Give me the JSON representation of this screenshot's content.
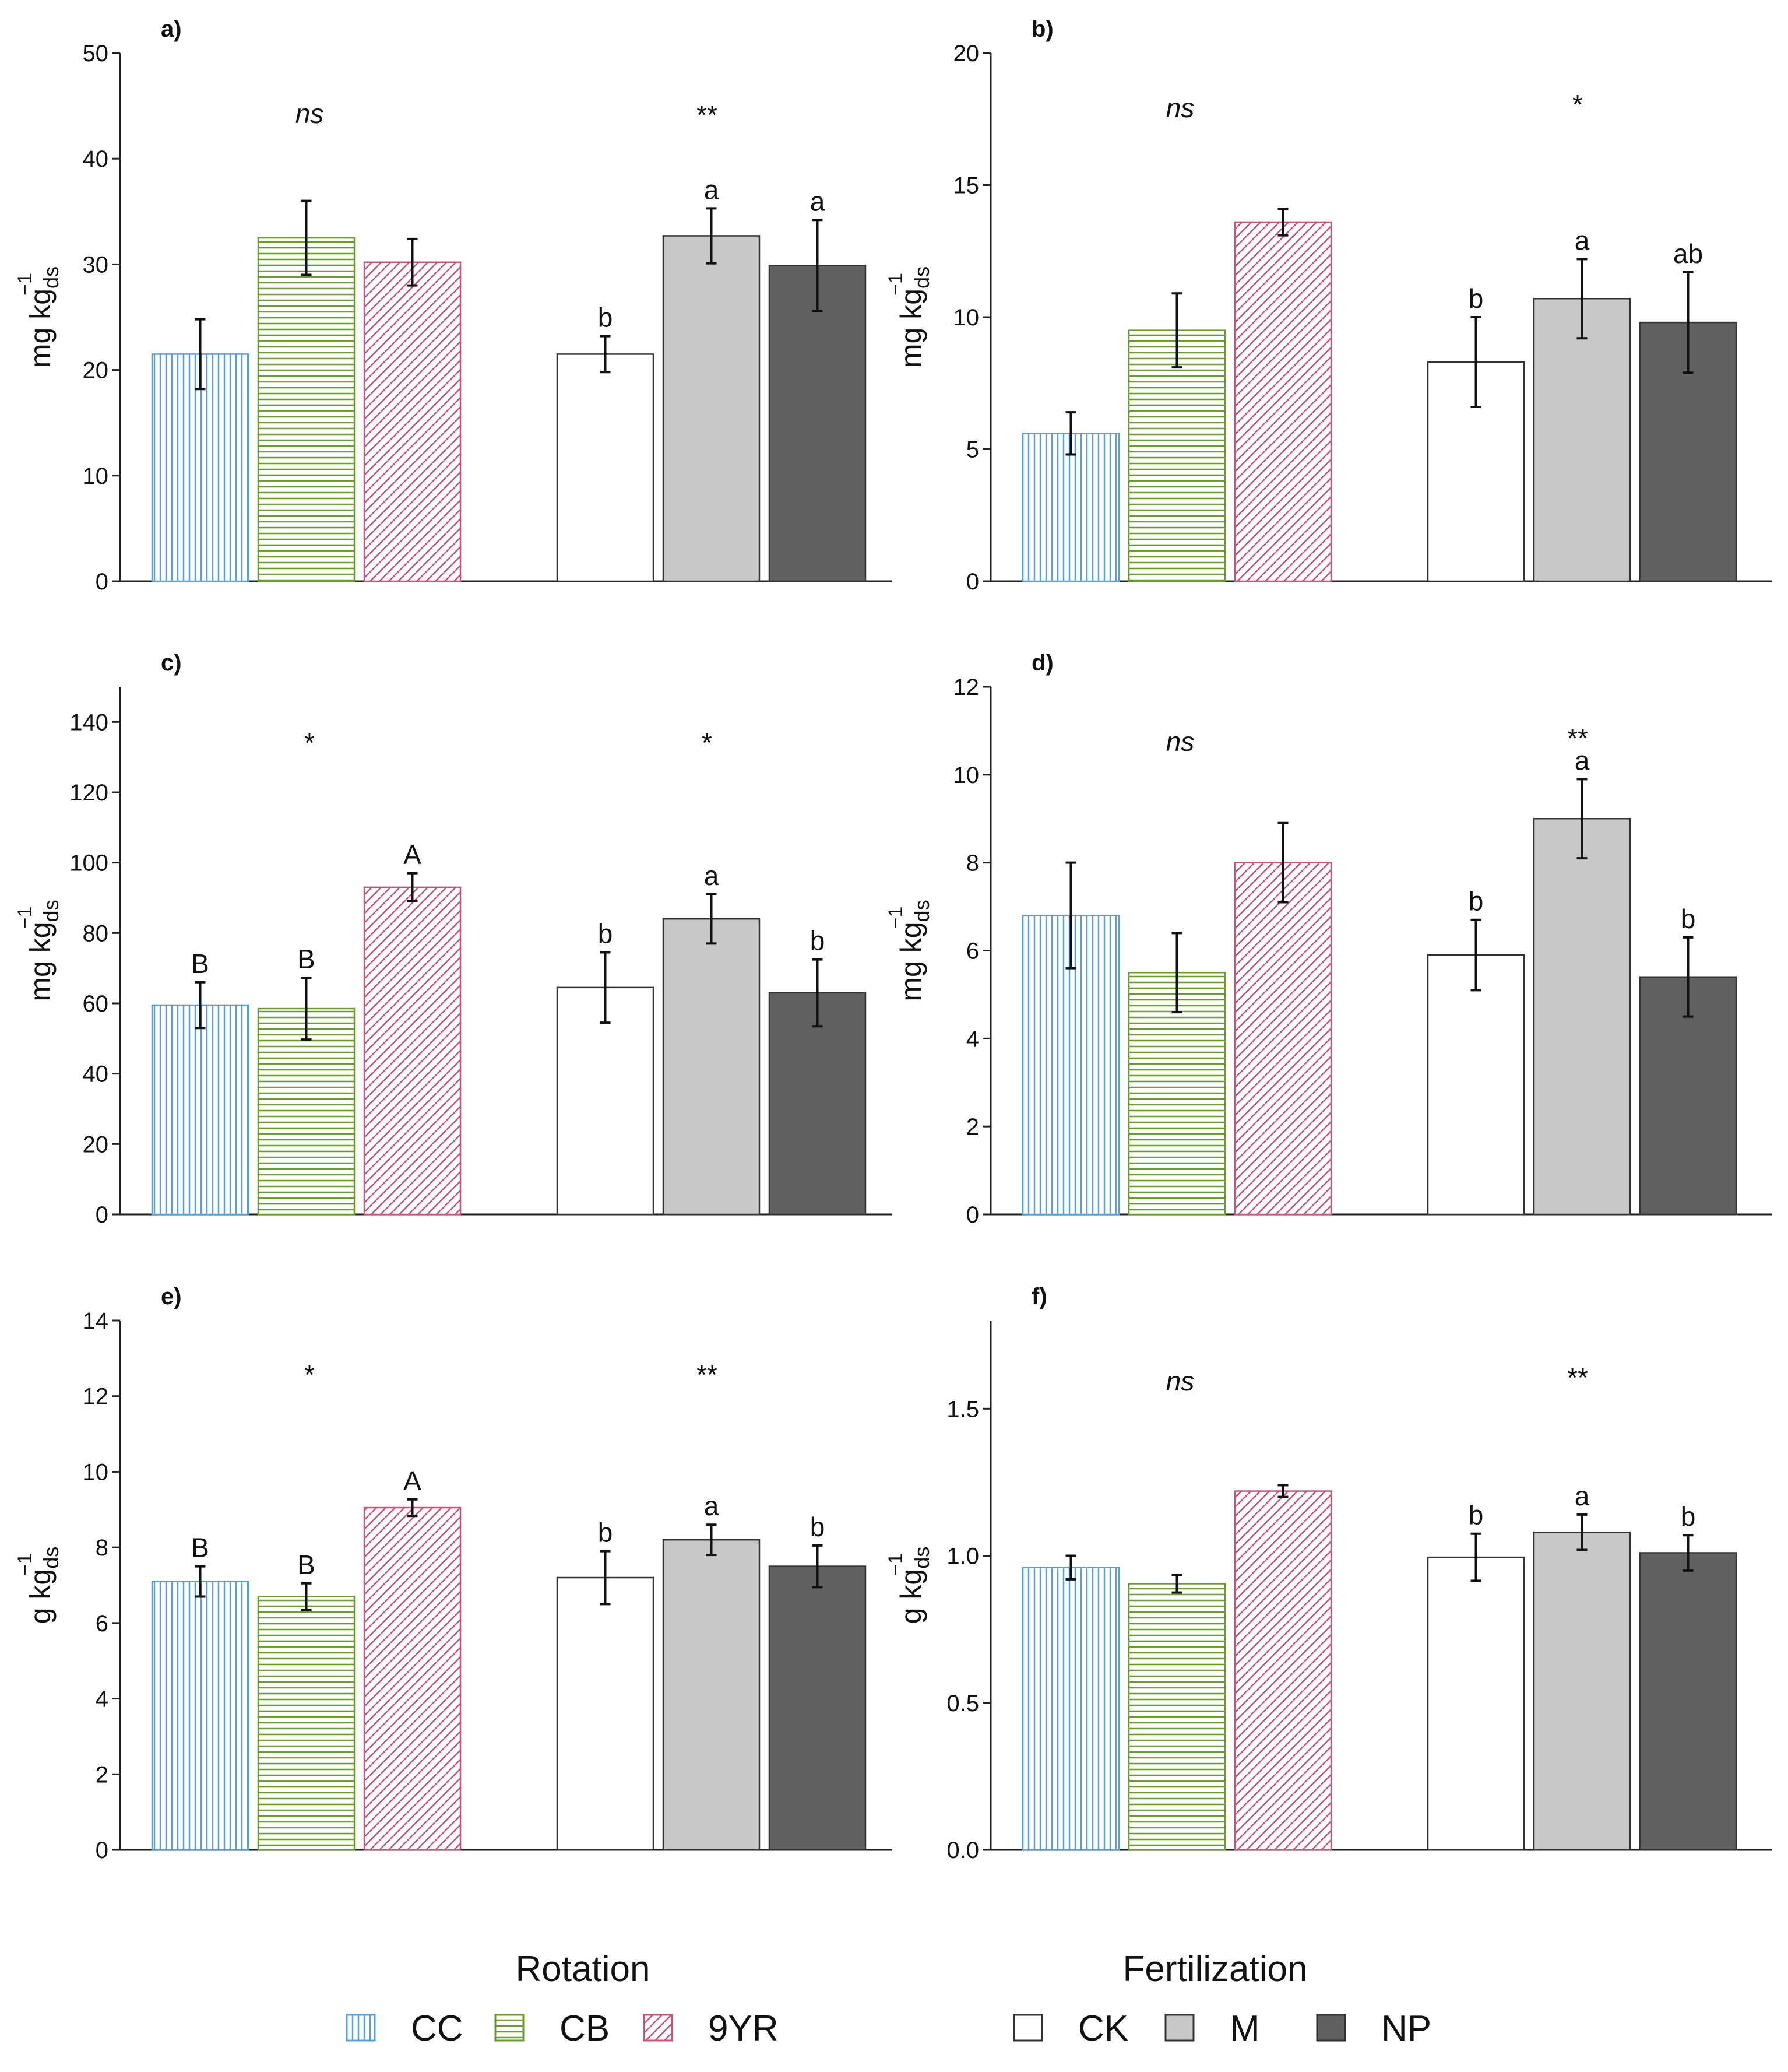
{
  "legend": {
    "groups": [
      {
        "title": "Rotation",
        "items": [
          {
            "label": "CC",
            "pattern": "vertical",
            "color": "#5a9fd4"
          },
          {
            "label": "CB",
            "pattern": "horizontal",
            "color": "#6b9a2e"
          },
          {
            "label": "9YR",
            "pattern": "diagonal",
            "color": "#c4567a"
          }
        ]
      },
      {
        "title": "Fertilization",
        "items": [
          {
            "label": "CK",
            "fill": "#ffffff"
          },
          {
            "label": "M",
            "fill": "#c8c8c8"
          },
          {
            "label": "NP",
            "fill": "#606060"
          }
        ]
      }
    ]
  },
  "chart_data": [
    {
      "panel": "a)",
      "type": "bar",
      "ylabel": "mg kg",
      "ylabel_sup": "−1",
      "ylabel_sub": "ds",
      "ylim": [
        0,
        50
      ],
      "yticks": [
        "0",
        "10",
        "20",
        "30",
        "40",
        "50"
      ],
      "grid": false,
      "categories": [
        "CC",
        "CB",
        "9YR",
        "CK",
        "M",
        "NP"
      ],
      "values": [
        21.5,
        32.5,
        30.2,
        21.5,
        32.7,
        29.9
      ],
      "errors": [
        3.3,
        3.5,
        2.2,
        1.7,
        2.6,
        4.3
      ],
      "letters": [
        "",
        "",
        "",
        "b",
        "a",
        "a"
      ],
      "significance": [
        "ns",
        "**"
      ]
    },
    {
      "panel": "b)",
      "type": "bar",
      "ylabel": "mg kg",
      "ylabel_sup": "−1",
      "ylabel_sub": "ds",
      "ylim": [
        0,
        20
      ],
      "yticks": [
        "0",
        "5",
        "10",
        "15",
        "20"
      ],
      "grid": false,
      "categories": [
        "CC",
        "CB",
        "9YR",
        "CK",
        "M",
        "NP"
      ],
      "values": [
        5.6,
        9.5,
        13.6,
        8.3,
        10.7,
        9.8
      ],
      "errors": [
        0.8,
        1.4,
        0.5,
        1.7,
        1.5,
        1.9
      ],
      "letters": [
        "",
        "",
        "",
        "b",
        "a",
        "ab"
      ],
      "significance": [
        "ns",
        "*"
      ]
    },
    {
      "panel": "c)",
      "type": "bar",
      "ylabel": "mg kg",
      "ylabel_sup": "−1",
      "ylabel_sub": "ds",
      "ylim": [
        0,
        150
      ],
      "yticks": [
        "0",
        "20",
        "40",
        "60",
        "80",
        "100",
        "120",
        "140"
      ],
      "grid": false,
      "categories": [
        "CC",
        "CB",
        "9YR",
        "CK",
        "M",
        "NP"
      ],
      "values": [
        59.5,
        58.5,
        93,
        64.5,
        84,
        63
      ],
      "errors": [
        6.5,
        8.8,
        4.0,
        10.0,
        7.0,
        9.5
      ],
      "letters": [
        "B",
        "B",
        "A",
        "b",
        "a",
        "b"
      ],
      "significance": [
        "*",
        "*"
      ]
    },
    {
      "panel": "d)",
      "type": "bar",
      "ylabel": "mg kg",
      "ylabel_sup": "−1",
      "ylabel_sub": "ds",
      "ylim": [
        0,
        12
      ],
      "yticks": [
        "0",
        "2",
        "4",
        "6",
        "8",
        "10",
        "12"
      ],
      "grid": false,
      "categories": [
        "CC",
        "CB",
        "9YR",
        "CK",
        "M",
        "NP"
      ],
      "values": [
        6.8,
        5.5,
        8.0,
        5.9,
        9.0,
        5.4
      ],
      "errors": [
        1.2,
        0.9,
        0.9,
        0.8,
        0.9,
        0.9
      ],
      "letters": [
        "",
        "",
        "",
        "b",
        "a",
        "b"
      ],
      "significance": [
        "ns",
        "**"
      ]
    },
    {
      "panel": "e)",
      "type": "bar",
      "ylabel": "g kg",
      "ylabel_sup": "−1",
      "ylabel_sub": "ds",
      "ylim": [
        0,
        14
      ],
      "yticks": [
        "0",
        "2",
        "4",
        "6",
        "8",
        "10",
        "12",
        "14"
      ],
      "grid": false,
      "categories": [
        "CC",
        "CB",
        "9YR",
        "CK",
        "M",
        "NP"
      ],
      "values": [
        7.1,
        6.7,
        9.05,
        7.2,
        8.2,
        7.5
      ],
      "errors": [
        0.4,
        0.35,
        0.22,
        0.7,
        0.4,
        0.55
      ],
      "letters": [
        "B",
        "B",
        "A",
        "b",
        "a",
        "b"
      ],
      "significance": [
        "*",
        "**"
      ]
    },
    {
      "panel": "f)",
      "type": "bar",
      "ylabel": "g kg",
      "ylabel_sup": "−1",
      "ylabel_sub": "ds",
      "ylim": [
        0,
        1.8
      ],
      "yticks": [
        "0.0",
        "0.5",
        "1.0",
        "1.5"
      ],
      "grid": false,
      "categories": [
        "CC",
        "CB",
        "9YR",
        "CK",
        "M",
        "NP"
      ],
      "values": [
        0.96,
        0.905,
        1.22,
        0.995,
        1.08,
        1.01
      ],
      "errors": [
        0.04,
        0.03,
        0.02,
        0.08,
        0.06,
        0.06
      ],
      "letters": [
        "",
        "",
        "",
        "b",
        "a",
        "b"
      ],
      "significance": [
        "ns",
        "**"
      ]
    }
  ]
}
